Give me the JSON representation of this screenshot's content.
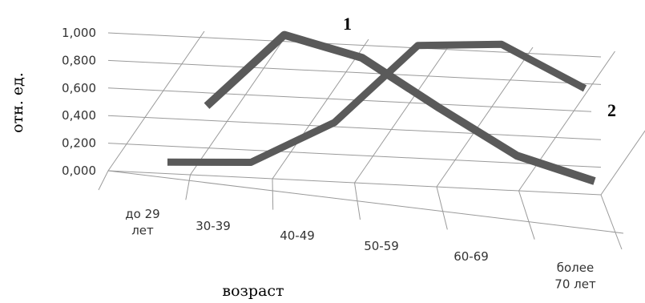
{
  "chart_data": {
    "type": "line",
    "categories": [
      "до 29 лет",
      "30-39",
      "40-49",
      "50-59",
      "60-69",
      "более 70 лет"
    ],
    "category_lines": [
      [
        "до 29",
        "лет"
      ],
      [
        "30-39"
      ],
      [
        "40-49"
      ],
      [
        "50-59"
      ],
      [
        "60-69"
      ],
      [
        "более",
        "70 лет"
      ]
    ],
    "y_ticks": [
      "0,000",
      "0,200",
      "0,400",
      "0,600",
      "0,800",
      "1,000"
    ],
    "ylim": [
      0,
      1.0
    ],
    "xlabel": "возраст",
    "ylabel": "отн. ед.",
    "grid": true,
    "series": [
      {
        "name": "1",
        "values": [
          0.47,
          1.0,
          0.85,
          0.5,
          0.17,
          0.0
        ],
        "color": "#5a5a5a"
      },
      {
        "name": "2",
        "values": [
          0.01,
          0.01,
          0.3,
          0.86,
          0.87,
          0.55
        ],
        "color": "#5a5a5a"
      }
    ]
  }
}
